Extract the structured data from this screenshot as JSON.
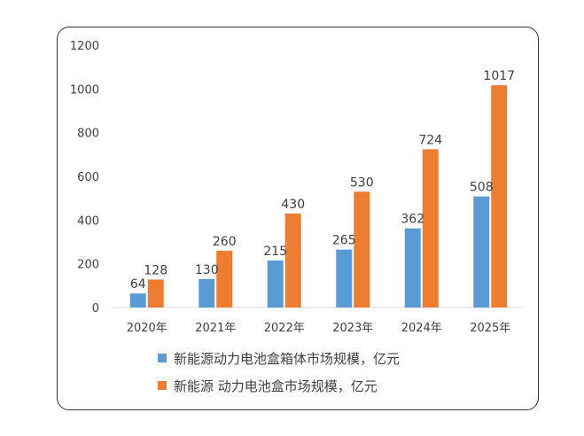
{
  "chart_data": {
    "type": "bar",
    "categories": [
      "2020年",
      "2021年",
      "2022年",
      "2023年",
      "2024年",
      "2025年"
    ],
    "series": [
      {
        "name": "新能源动力电池盒箱体市场规模，亿元",
        "values": [
          64,
          130,
          215,
          265,
          362,
          508
        ],
        "color": "#5B9BD5"
      },
      {
        "name": "新能源 动力电池盒市场规模，亿元",
        "values": [
          128,
          260,
          430,
          530,
          724,
          1017
        ],
        "color": "#ED7D31"
      }
    ],
    "ylim": [
      0,
      1200
    ],
    "yticks": [
      0,
      200,
      400,
      600,
      800,
      1000,
      1200
    ],
    "legend_position": "bottom",
    "grid": false
  }
}
